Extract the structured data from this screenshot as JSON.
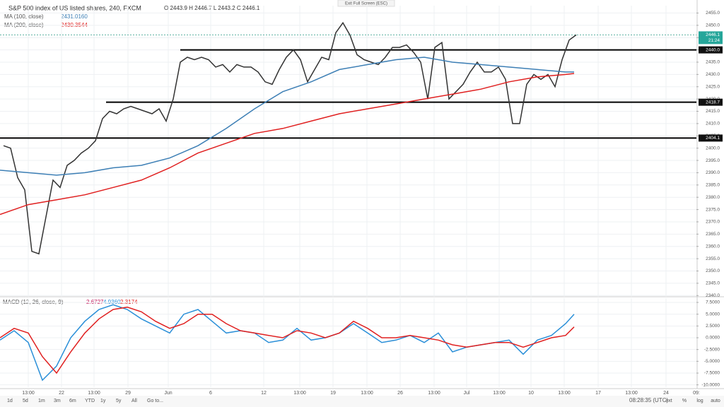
{
  "header": {
    "exit_button": "Exit Full Screen (ESC)"
  },
  "chart_data": [
    {
      "type": "line",
      "title": "S&P 500 index of US listed shares, 240, FXCM",
      "ohlc": "O 2443.9 H 2446.7 L 2443.2 C 2446.1",
      "xlim": [
        0,
        98.5
      ],
      "ylim": [
        2339.5,
        2458
      ],
      "yticks": [
        {
          "value": 2340,
          "label": "2340.0"
        },
        {
          "value": 2345,
          "label": "2345.0"
        },
        {
          "value": 2350,
          "label": "2350.0"
        },
        {
          "value": 2355,
          "label": "2355.0"
        },
        {
          "value": 2360,
          "label": "2360.0"
        },
        {
          "value": 2365,
          "label": "2365.0"
        },
        {
          "value": 2370,
          "label": "2370.0"
        },
        {
          "value": 2375,
          "label": "2375.0"
        },
        {
          "value": 2380,
          "label": "2380.0"
        },
        {
          "value": 2385,
          "label": "2385.0"
        },
        {
          "value": 2390,
          "label": "2390.0"
        },
        {
          "value": 2395,
          "label": "2395.0"
        },
        {
          "value": 2400,
          "label": "2400.0"
        },
        {
          "value": 2405,
          "label": "2405.0"
        },
        {
          "value": 2410,
          "label": "2410.0"
        },
        {
          "value": 2415,
          "label": "2415.0"
        },
        {
          "value": 2420,
          "label": "2420.0"
        },
        {
          "value": 2425,
          "label": "2425.0"
        },
        {
          "value": 2430,
          "label": "2430.0"
        },
        {
          "value": 2435,
          "label": "2435.0"
        },
        {
          "value": 2440,
          "label": "2440.0"
        },
        {
          "value": 2445,
          "label": "2445.0"
        },
        {
          "value": 2450,
          "label": "2450.0"
        },
        {
          "value": 2455,
          "label": "2455.0"
        }
      ],
      "grid": true,
      "series": [
        {
          "color": "#333333",
          "x": [
            0.5,
            1.5,
            2.5,
            3.5,
            4.5,
            5.5,
            6.5,
            7.5,
            8.5,
            9.5,
            10.5,
            11.5,
            12.5,
            13.5,
            14.5,
            15.5,
            16.5,
            17.5,
            18.5,
            19.5,
            20.5,
            21.5,
            22.5,
            23.5,
            24.5,
            25.5,
            26.5,
            27.5,
            28.5,
            29.5,
            30.5,
            31.5,
            32.5,
            33.5,
            34.5,
            35.5,
            36.5,
            37.5,
            38.5,
            39.5,
            40.5,
            41.5,
            42.5,
            43.5,
            44.5,
            45.5,
            46.5,
            47.5,
            48.5,
            49.5,
            50.5,
            51.5,
            52.5,
            53.5,
            54.5,
            55.5,
            56.5,
            57.5,
            58.5,
            59.5,
            60.5,
            61.5,
            62.5,
            63.5,
            64.5,
            65.5,
            66.5,
            67.5,
            68.5,
            69.5,
            70.5,
            71.5,
            72.5,
            73.5,
            74.5,
            75.5,
            76.5,
            77.5,
            78.5,
            79.5,
            80.5,
            81.5
          ],
          "values": [
            2401,
            2400,
            2388,
            2383,
            2358,
            2357,
            2372,
            2387,
            2384,
            2393,
            2395,
            2398,
            2400,
            2403,
            2412,
            2415,
            2414,
            2416,
            2417,
            2416,
            2415,
            2414,
            2416,
            2411,
            2420,
            2435,
            2437,
            2436,
            2437,
            2436,
            2433,
            2434,
            2431,
            2434,
            2433,
            2433,
            2431,
            2427,
            2426,
            2432,
            2437,
            2440,
            2436,
            2427,
            2432,
            2437,
            2436,
            2447,
            2451,
            2446,
            2438,
            2436,
            2435,
            2434,
            2437,
            2441,
            2441,
            2442,
            2439,
            2435,
            2420,
            2441,
            2443,
            2420,
            2423,
            2426,
            2431,
            2435,
            2431,
            2431,
            2433,
            2428,
            2410,
            2410,
            2426,
            2430,
            2428,
            2430,
            2425,
            2436,
            2444,
            2446.1
          ]
        },
        {
          "name": "MA (100, close)",
          "value_label": "2431.0160",
          "color": "#3d7fb5",
          "x": [
            0,
            4,
            8,
            12,
            16,
            20,
            24,
            28,
            32,
            36,
            40,
            44,
            48,
            52,
            56,
            60,
            64,
            68,
            72,
            76,
            80,
            81.2
          ],
          "values": [
            2391,
            2390,
            2389,
            2390,
            2392,
            2393,
            2396,
            2401,
            2408,
            2416,
            2423,
            2427,
            2432,
            2434,
            2436,
            2437,
            2435,
            2434,
            2433,
            2432,
            2431,
            2431
          ]
        },
        {
          "name": "MA (200, close)",
          "value_label": "2430.3544",
          "color": "#e02020",
          "x": [
            0,
            4,
            8,
            12,
            16,
            20,
            24,
            28,
            32,
            36,
            40,
            44,
            48,
            52,
            56,
            60,
            64,
            68,
            72,
            76,
            80,
            81.2
          ],
          "values": [
            2373,
            2377,
            2379,
            2381,
            2384,
            2387,
            2392,
            2398,
            2402,
            2406,
            2408,
            2411,
            2414,
            2416,
            2418,
            2420,
            2422,
            2424,
            2427,
            2429,
            2430,
            2430.4
          ]
        }
      ],
      "levels": [
        {
          "value": 2440,
          "label": "2440.0",
          "x": 25.5
        },
        {
          "value": 2418.7,
          "label": "2418.7",
          "x": 15
        },
        {
          "value": 2404.1,
          "label": "2404.1",
          "x": 0
        }
      ],
      "last_price": 2446.1,
      "countdown": "21:24"
    },
    {
      "type": "line",
      "title": "MACD (12, 26, close, 9)",
      "readout": [
        "2.6727",
        "4.9360",
        "2.3174"
      ],
      "xlim": [
        0,
        98.5
      ],
      "ylim": [
        -10.5,
        8.4
      ],
      "yticks": [
        {
          "value": 7.5,
          "label": "7.5000"
        },
        {
          "value": 5,
          "label": "5.0000"
        },
        {
          "value": 2.5,
          "label": "2.5000"
        },
        {
          "value": 0,
          "label": "0.0000"
        },
        {
          "value": -2.5,
          "label": "-2.5000"
        },
        {
          "value": -5,
          "label": "-5.0000"
        },
        {
          "value": -7.5,
          "label": "-7.5000"
        },
        {
          "value": -10,
          "label": "-10.0000"
        }
      ],
      "xticks": [
        {
          "value": 4,
          "label": "13:00"
        },
        {
          "value": 8.7,
          "label": "22"
        },
        {
          "value": 13.3,
          "label": "13:00"
        },
        {
          "value": 18.1,
          "label": "29"
        },
        {
          "value": 23.8,
          "label": "Jun"
        },
        {
          "value": 29.8,
          "label": "6"
        },
        {
          "value": 37.3,
          "label": "12"
        },
        {
          "value": 42.4,
          "label": "13:00"
        },
        {
          "value": 47.1,
          "label": "19"
        },
        {
          "value": 51.9,
          "label": "13:00"
        },
        {
          "value": 56.6,
          "label": "26"
        },
        {
          "value": 61.4,
          "label": "13:00"
        },
        {
          "value": 66,
          "label": "Jul"
        },
        {
          "value": 70.6,
          "label": "13:00"
        },
        {
          "value": 75.1,
          "label": "10"
        },
        {
          "value": 79.8,
          "label": "13:00"
        },
        {
          "value": 84.6,
          "label": "17"
        },
        {
          "value": 89.3,
          "label": "13:00"
        },
        {
          "value": 94.2,
          "label": "24"
        },
        {
          "value": 98.5,
          "label": "09:"
        }
      ],
      "series": [
        {
          "color": "#2a8fd8",
          "x": [
            0,
            2,
            4,
            6,
            8,
            10,
            12,
            14,
            16,
            18,
            20,
            22,
            24,
            26,
            28,
            30,
            32,
            34,
            36,
            38,
            40,
            42,
            44,
            46,
            48,
            50,
            52,
            54,
            56,
            58,
            60,
            62,
            64,
            66,
            68,
            70,
            72,
            74,
            76,
            78,
            80,
            81.2
          ],
          "values": [
            -0.5,
            1.5,
            -1,
            -9,
            -6,
            0,
            3.5,
            6,
            7,
            6,
            4,
            2.5,
            1,
            5,
            6,
            3.5,
            1,
            1.5,
            1,
            -1,
            -0.5,
            2,
            -0.5,
            0,
            1,
            3,
            1,
            -1,
            -0.5,
            0.5,
            -1,
            1,
            -3,
            -2,
            -1.5,
            -1,
            -0.5,
            -3.5,
            -0.5,
            0.5,
            3,
            5
          ]
        },
        {
          "color": "#e02020",
          "x": [
            0,
            2,
            4,
            6,
            8,
            10,
            12,
            14,
            16,
            18,
            20,
            22,
            24,
            26,
            28,
            30,
            32,
            34,
            36,
            38,
            40,
            42,
            44,
            46,
            48,
            50,
            52,
            54,
            56,
            58,
            60,
            62,
            64,
            66,
            68,
            70,
            72,
            74,
            76,
            78,
            80,
            81.2
          ],
          "values": [
            0,
            2,
            1,
            -4,
            -7.5,
            -3,
            1,
            4,
            6,
            6.5,
            5.5,
            3.5,
            2,
            3,
            5,
            5,
            3,
            1.5,
            1,
            0.5,
            0,
            1.5,
            1,
            0,
            1,
            3.5,
            2,
            0,
            0,
            0.5,
            0,
            -0.5,
            -1.5,
            -2,
            -1.5,
            -1,
            -1,
            -2,
            -1,
            0,
            0.5,
            2.3
          ]
        }
      ]
    }
  ],
  "toolbar": {
    "ranges": [
      "1d",
      "5d",
      "1m",
      "3m",
      "6m",
      "YTD",
      "1y",
      "5y",
      "All",
      "Go to..."
    ],
    "clock": "08:28:35 (UTC)",
    "options": [
      "ext",
      "%",
      "log",
      "auto"
    ]
  }
}
